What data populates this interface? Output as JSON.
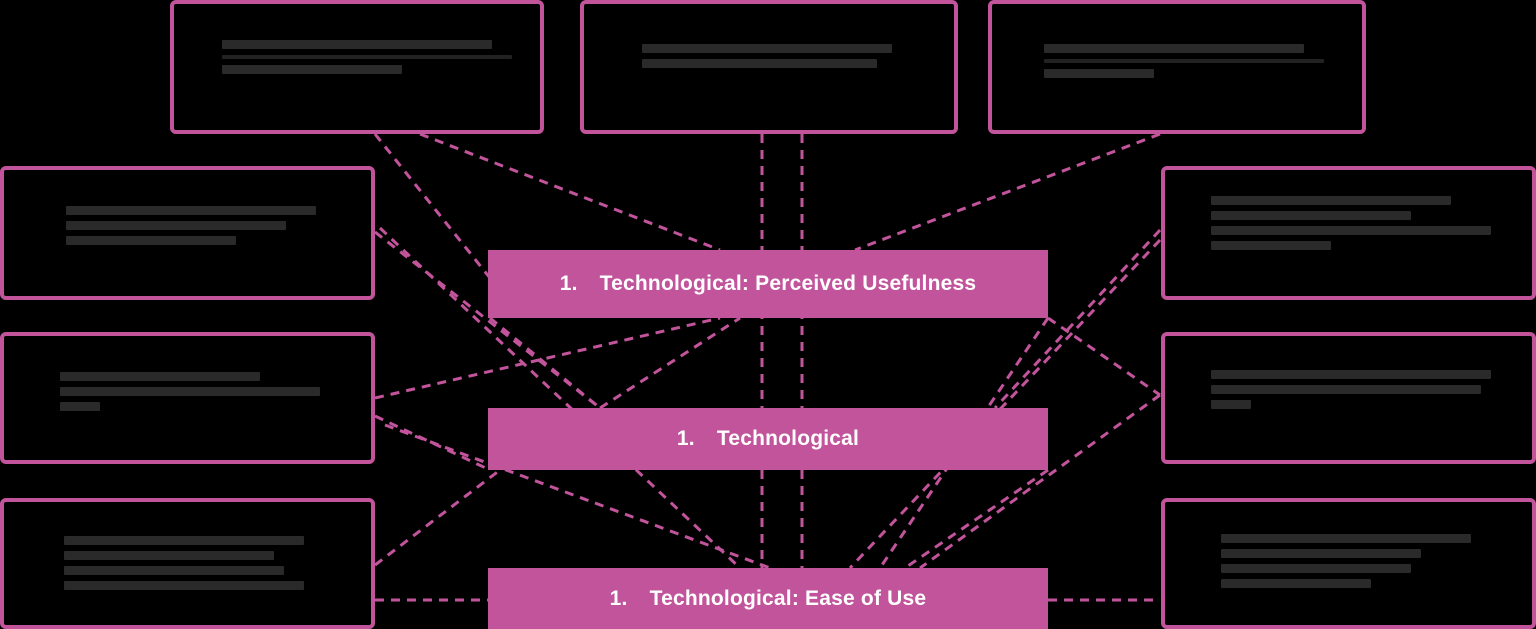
{
  "colors": {
    "accent": "#c2549c",
    "background": "#000000",
    "connector": "#c2549c",
    "text_on_accent": "#ffffff"
  },
  "center_boxes": [
    {
      "number": "1.",
      "label": "Technological: Perceived Usefulness"
    },
    {
      "number": "1.",
      "label": "Technological"
    },
    {
      "number": "1.",
      "label": "Technological: Ease of Use"
    }
  ],
  "outer_boxes": [
    {
      "id": "top-left",
      "text": ""
    },
    {
      "id": "top-center",
      "text": ""
    },
    {
      "id": "top-right",
      "text": ""
    },
    {
      "id": "left-1",
      "text": ""
    },
    {
      "id": "left-2",
      "text": ""
    },
    {
      "id": "left-3",
      "text": ""
    },
    {
      "id": "right-1",
      "text": ""
    },
    {
      "id": "right-2",
      "text": ""
    },
    {
      "id": "right-3",
      "text": ""
    }
  ]
}
